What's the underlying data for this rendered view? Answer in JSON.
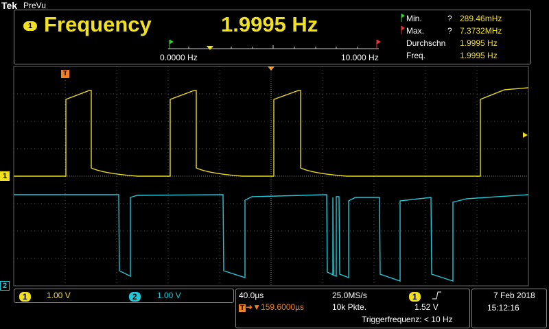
{
  "header": {
    "brand": "Tek",
    "mode": "PreVu"
  },
  "measurement": {
    "channel": "1",
    "name": "Frequency",
    "value": "1.9995 Hz",
    "stats": [
      {
        "label": "Min.",
        "flag": "?",
        "value": "289.46mHz"
      },
      {
        "label": "Max.",
        "flag": "?",
        "value": "7.3732MHz"
      },
      {
        "label": "Durchschn",
        "value": "1.9995 Hz"
      },
      {
        "label": "Freq.",
        "value": "1.9995 Hz"
      }
    ],
    "scale_min": "0.0000 Hz",
    "scale_max": "10.000 Hz"
  },
  "markers": {
    "trigger": "T",
    "ch1": "1",
    "ch2": "2"
  },
  "channels": [
    {
      "id": "1",
      "scale": "1.00 V"
    },
    {
      "id": "2",
      "scale": "1.00 V"
    }
  ],
  "timebase": {
    "horizontal": "40.0µs",
    "sample_rate": "25.0MS/s",
    "trigger_source": "1",
    "trigger_level": "1.52 V",
    "position": "159.6000µs",
    "record_length": "10k Pkte.",
    "trigger_frequency": "Triggerfrequenz: < 10 Hz"
  },
  "datetime": {
    "date": "7 Feb 2018",
    "time": "15:12:16"
  }
}
